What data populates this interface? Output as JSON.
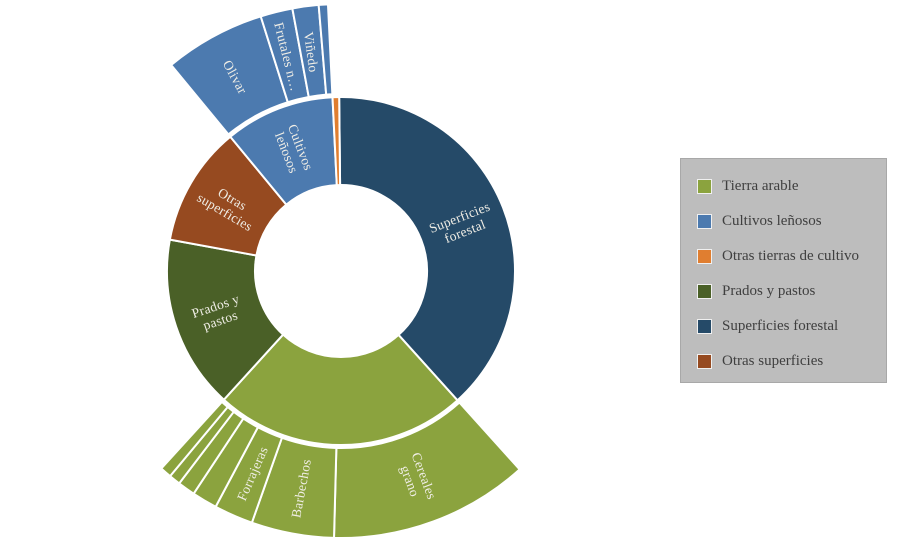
{
  "chart_data": {
    "type": "sunburst",
    "title": "",
    "rings": 2,
    "value_unit": "percent_of_total_estimated_from_arc_angles",
    "start_reference": "degrees_clockwise_from_12_oclock",
    "segments": [
      {
        "label": "Superficies forestal",
        "label_lines": [
          "Superficies",
          "forestal"
        ],
        "color": "#254A68",
        "start_deg": -0.6,
        "span_deg": 138.6,
        "pct_est": 38.5,
        "children": []
      },
      {
        "label": "Tierra arable",
        "label_lines": [],
        "color": "#8BA33E",
        "start_deg": 138.0,
        "span_deg": 84.3,
        "pct_est": 23.4,
        "children": [
          {
            "label": "Cereales grano",
            "label_lines": [
              "Cereales",
              "grano"
            ],
            "span_deg": 43.5,
            "pct_est": 12.1
          },
          {
            "label": "Barbechos",
            "label_lines": [
              "Barbechos"
            ],
            "span_deg": 18.0,
            "pct_est": 5.0
          },
          {
            "label": "Forrajeras",
            "label_lines": [
              "Forrajeras"
            ],
            "span_deg": 8.5,
            "pct_est": 2.4
          },
          {
            "label": "",
            "label_lines": [],
            "span_deg": 5.5,
            "pct_est": 1.5
          },
          {
            "label": "",
            "label_lines": [],
            "span_deg": 3.8,
            "pct_est": 1.1
          },
          {
            "label": "",
            "label_lines": [],
            "span_deg": 2.5,
            "pct_est": 0.7
          },
          {
            "label": "",
            "label_lines": [],
            "span_deg": 2.5,
            "pct_est": 0.7
          }
        ]
      },
      {
        "label": "Prados y pastos",
        "label_lines": [
          "Prados y",
          "pastos"
        ],
        "color": "#4A6027",
        "start_deg": 222.3,
        "span_deg": 58.1,
        "pct_est": 16.1,
        "children": []
      },
      {
        "label": "Otras superficies",
        "label_lines": [
          "Otras",
          "superficies"
        ],
        "color": "#964A20",
        "start_deg": 280.4,
        "span_deg": 40.1,
        "pct_est": 11.1,
        "children": []
      },
      {
        "label": "Cultivos leñosos",
        "label_lines": [
          "Cultivos",
          "leñosos"
        ],
        "color": "#4C7AAF",
        "start_deg": 320.5,
        "span_deg": 36.7,
        "pct_est": 10.2,
        "children": [
          {
            "label": "Olivar",
            "label_lines": [
              "Olivar"
            ],
            "span_deg": 22.0,
            "pct_est": 6.1
          },
          {
            "label": "Frutales n…",
            "label_lines": [
              "Frutales n…"
            ],
            "span_deg": 7.0,
            "pct_est": 1.9
          },
          {
            "label": "Viñedo",
            "label_lines": [
              "Viñedo"
            ],
            "span_deg": 5.7,
            "pct_est": 1.6
          },
          {
            "label": "",
            "label_lines": [],
            "span_deg": 2.0,
            "pct_est": 0.6
          }
        ]
      },
      {
        "label": "Otras tierras de cultivo",
        "label_lines": [],
        "color": "#E07E30",
        "start_deg": 357.2,
        "span_deg": 2.2,
        "pct_est": 0.6,
        "children": []
      }
    ],
    "legend_position": "right",
    "grid": false
  },
  "legend": {
    "background": "#BDBDBD",
    "items": [
      {
        "label": "Tierra arable",
        "color": "#8BA33E"
      },
      {
        "label": "Cultivos leñosos",
        "color": "#4C7AAF"
      },
      {
        "label": "Otras tierras de cultivo",
        "color": "#E07E30"
      },
      {
        "label": "Prados y pastos",
        "color": "#4A6027"
      },
      {
        "label": "Superficies forestal",
        "color": "#254A68"
      },
      {
        "label": "Otras superficies",
        "color": "#964A20"
      }
    ]
  },
  "colors": {
    "segment_divider": "#FFFFFF",
    "segment_label_text": "#F0EEE6",
    "legend_text": "#3F3F3F",
    "page_background": "#FFFFFF"
  }
}
